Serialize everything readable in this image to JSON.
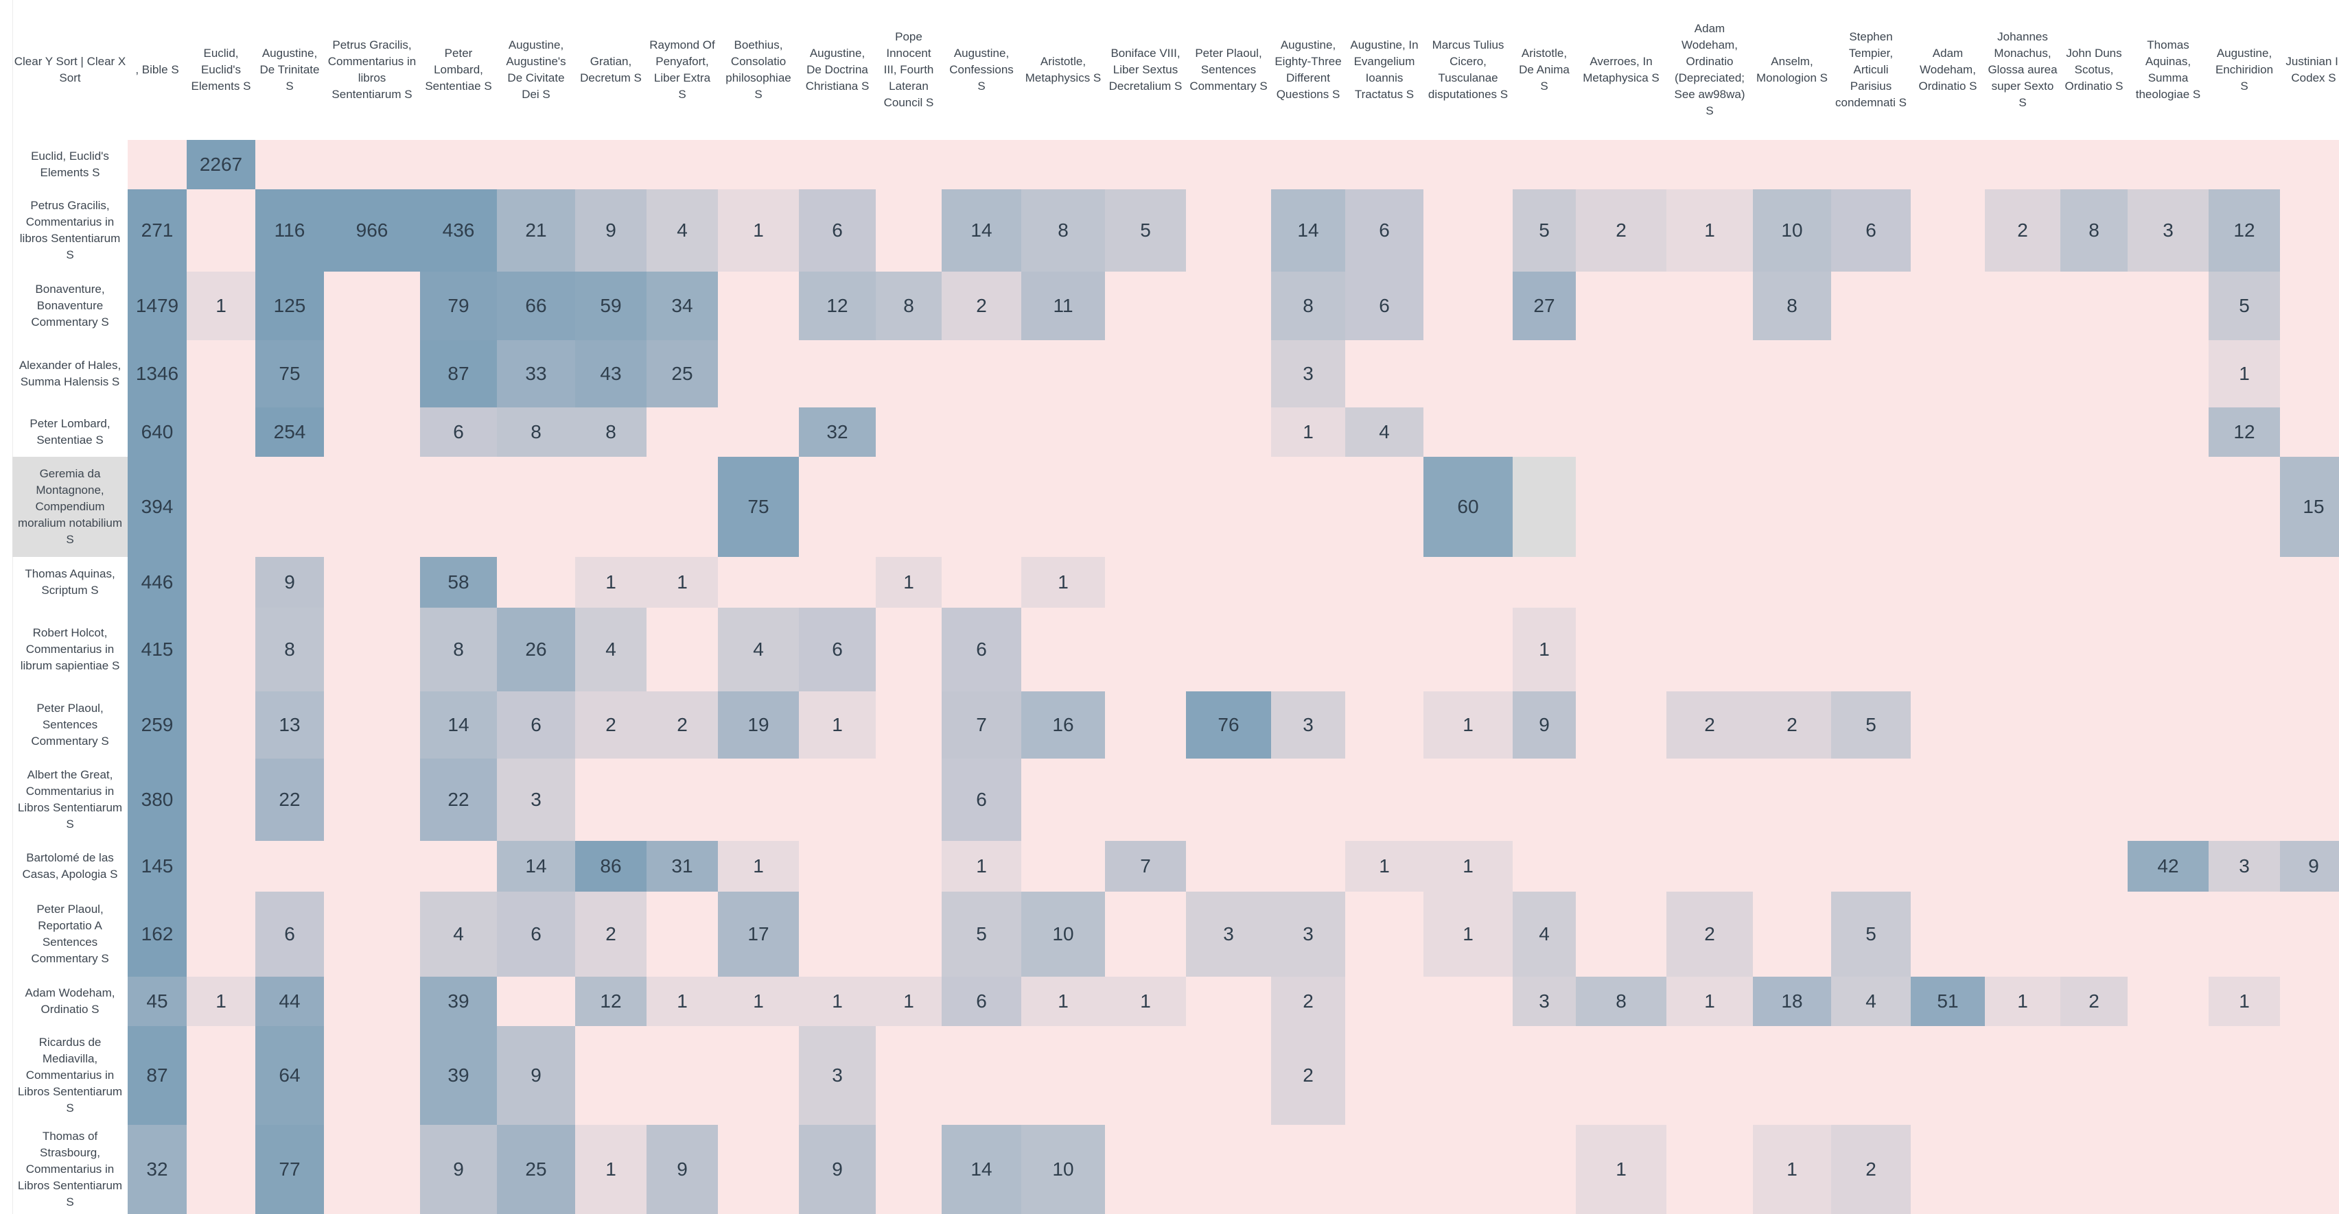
{
  "corner_label": "Clear Y Sort | Clear X Sort",
  "columns": [
    ", Bible S",
    "Euclid, Euclid's Elements S",
    "Augustine, De Trinitate S",
    "Petrus Gracilis, Commentarius in libros Sententiarum S",
    "Peter Lombard, Sententiae S",
    "Augustine, Augustine's De Civitate Dei S",
    "Gratian, Decretum S",
    "Raymond Of Penyafort, Liber Extra S",
    "Boethius, Consolatio philosophiae S",
    "Augustine, De Doctrina Christiana S",
    "Pope Innocent III, Fourth Lateran Council S",
    "Augustine, Confessions S",
    "Aristotle, Metaphysics S",
    "Boniface VIII, Liber Sextus Decretalium S",
    "Peter Plaoul, Sentences Commentary S",
    "Augustine, Eighty-Three Different Questions S",
    "Augustine, In Evangelium Ioannis Tractatus S",
    "Marcus Tulius Cicero, Tusculanae disputationes S",
    "Aristotle, De Anima S",
    "Averroes, In Metaphysica S",
    "Adam Wodeham, Ordinatio (Depreciated; See aw98wa) S",
    "Anselm, Monologion S",
    "Stephen Tempier, Articuli Parisius condemnati S",
    "Adam Wodeham, Ordinatio S",
    "Johannes Monachus, Glossa aurea super Sexto S",
    "John Duns Scotus, Ordinatio S",
    "Thomas Aquinas, Summa theologiae S",
    "Augustine, Enchiridion S",
    "Justinian I, Codex S"
  ],
  "rows": [
    {
      "label": "Euclid, Euclid's Elements S",
      "selected": false,
      "values": [
        null,
        2267,
        null,
        null,
        null,
        null,
        null,
        null,
        null,
        null,
        null,
        null,
        null,
        null,
        null,
        null,
        null,
        null,
        null,
        null,
        null,
        null,
        null,
        null,
        null,
        null,
        null,
        null,
        null
      ]
    },
    {
      "label": "Petrus Gracilis, Commentarius in libros Sententiarum S",
      "selected": false,
      "values": [
        271,
        null,
        116,
        966,
        436,
        21,
        9,
        4,
        1,
        6,
        null,
        14,
        8,
        5,
        null,
        14,
        6,
        null,
        5,
        2,
        1,
        10,
        6,
        null,
        2,
        8,
        3,
        12,
        null
      ]
    },
    {
      "label": "Bonaventure, Bonaventure Commentary S",
      "selected": false,
      "values": [
        1479,
        1,
        125,
        null,
        79,
        66,
        59,
        34,
        null,
        12,
        8,
        2,
        11,
        null,
        null,
        8,
        6,
        null,
        27,
        null,
        null,
        8,
        null,
        null,
        null,
        null,
        null,
        5,
        null
      ]
    },
    {
      "label": "Alexander of Hales, Summa Halensis S",
      "selected": false,
      "values": [
        1346,
        null,
        75,
        null,
        87,
        33,
        43,
        25,
        null,
        null,
        null,
        null,
        null,
        null,
        null,
        3,
        null,
        null,
        null,
        null,
        null,
        null,
        null,
        null,
        null,
        null,
        null,
        1,
        null
      ]
    },
    {
      "label": "Peter Lombard, Sententiae S",
      "selected": false,
      "values": [
        640,
        null,
        254,
        null,
        6,
        8,
        8,
        null,
        null,
        32,
        null,
        null,
        null,
        null,
        null,
        1,
        4,
        null,
        null,
        null,
        null,
        null,
        null,
        null,
        null,
        null,
        null,
        12,
        null
      ]
    },
    {
      "label": "Geremia da Montagnone, Compendium moralium notabilium S",
      "selected": true,
      "values": [
        394,
        null,
        null,
        null,
        null,
        null,
        null,
        null,
        75,
        null,
        null,
        null,
        null,
        null,
        null,
        null,
        null,
        60,
        "",
        null,
        null,
        null,
        null,
        null,
        null,
        null,
        null,
        null,
        15
      ]
    },
    {
      "label": "Thomas Aquinas, Scriptum S",
      "selected": false,
      "values": [
        446,
        null,
        9,
        null,
        58,
        null,
        1,
        1,
        null,
        null,
        1,
        null,
        1,
        null,
        null,
        null,
        null,
        null,
        null,
        null,
        null,
        null,
        null,
        null,
        null,
        null,
        null,
        null,
        null
      ]
    },
    {
      "label": "Robert Holcot, Commentarius in librum sapientiae S",
      "selected": false,
      "values": [
        415,
        null,
        8,
        null,
        8,
        26,
        4,
        null,
        4,
        6,
        null,
        6,
        null,
        null,
        null,
        null,
        null,
        null,
        1,
        null,
        null,
        null,
        null,
        null,
        null,
        null,
        null,
        null,
        null
      ]
    },
    {
      "label": "Peter Plaoul, Sentences Commentary S",
      "selected": false,
      "values": [
        259,
        null,
        13,
        null,
        14,
        6,
        2,
        2,
        19,
        1,
        null,
        7,
        16,
        null,
        76,
        3,
        null,
        1,
        9,
        null,
        2,
        2,
        5,
        null,
        null,
        null,
        null,
        null,
        null
      ]
    },
    {
      "label": "Albert the Great, Commentarius in Libros Sententiarum S",
      "selected": false,
      "values": [
        380,
        null,
        22,
        null,
        22,
        3,
        null,
        null,
        null,
        null,
        null,
        6,
        null,
        null,
        null,
        null,
        null,
        null,
        null,
        null,
        null,
        null,
        null,
        null,
        null,
        null,
        null,
        null,
        null
      ]
    },
    {
      "label": "Bartolomé de las Casas, Apologia S",
      "selected": false,
      "values": [
        145,
        null,
        null,
        null,
        null,
        14,
        86,
        31,
        1,
        null,
        null,
        1,
        null,
        7,
        null,
        null,
        1,
        1,
        null,
        null,
        null,
        null,
        null,
        null,
        null,
        null,
        42,
        3,
        9
      ]
    },
    {
      "label": "Peter Plaoul, Reportatio A Sentences Commentary S",
      "selected": false,
      "values": [
        162,
        null,
        6,
        null,
        4,
        6,
        2,
        null,
        17,
        null,
        null,
        5,
        10,
        null,
        3,
        3,
        null,
        1,
        4,
        null,
        2,
        null,
        5,
        null,
        null,
        null,
        null,
        null,
        null
      ]
    },
    {
      "label": "Adam Wodeham, Ordinatio S",
      "selected": false,
      "values": [
        45,
        1,
        44,
        null,
        39,
        null,
        12,
        1,
        1,
        1,
        1,
        6,
        1,
        1,
        null,
        2,
        null,
        null,
        3,
        8,
        1,
        18,
        4,
        51,
        1,
        2,
        null,
        1,
        null
      ]
    },
    {
      "label": "Ricardus de Mediavilla, Commentarius in Libros Sententiarum S",
      "selected": false,
      "values": [
        87,
        null,
        64,
        null,
        39,
        9,
        null,
        null,
        null,
        3,
        null,
        null,
        null,
        null,
        null,
        2,
        null,
        null,
        null,
        null,
        null,
        null,
        null,
        null,
        null,
        null,
        null,
        null,
        null
      ]
    },
    {
      "label": "Thomas of Strasbourg, Commentarius in Libros Sententiarum S",
      "selected": false,
      "values": [
        32,
        null,
        77,
        null,
        9,
        25,
        1,
        9,
        null,
        9,
        null,
        14,
        10,
        null,
        null,
        null,
        null,
        null,
        null,
        1,
        null,
        1,
        2,
        null,
        null,
        null,
        null,
        null,
        null
      ]
    }
  ]
}
